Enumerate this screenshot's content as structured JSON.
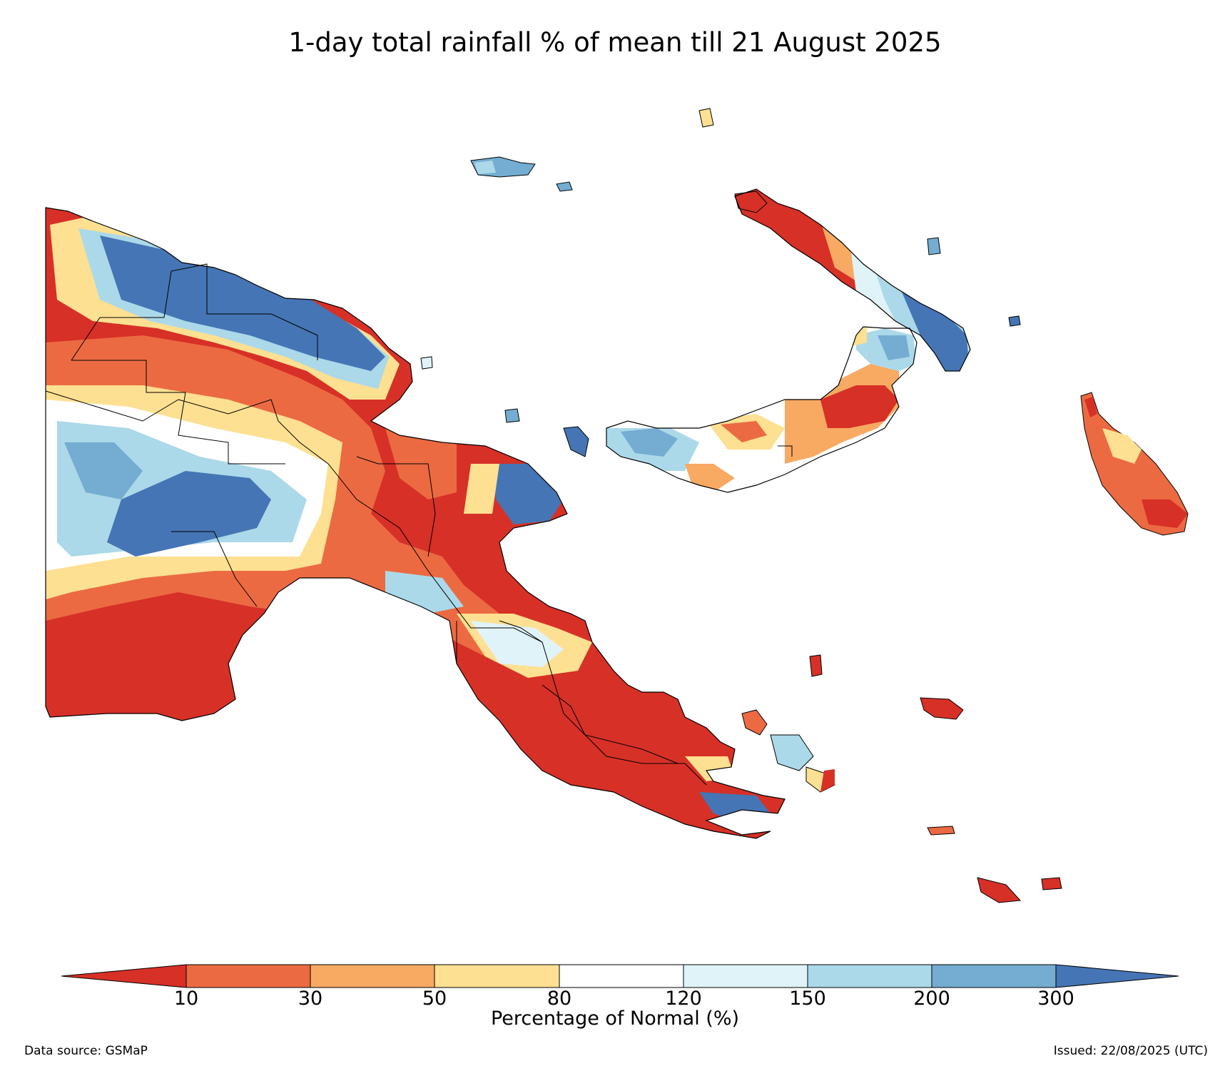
{
  "title": "1-day total rainfall % of mean till 21 August 2025",
  "colorbar": {
    "label": "Percentage of Normal (%)",
    "ticks": [
      "10",
      "30",
      "50",
      "80",
      "120",
      "150",
      "200",
      "300"
    ],
    "bins": [
      {
        "range": "<10",
        "color": "#d73027"
      },
      {
        "range": "10-30",
        "color": "#ec6a42"
      },
      {
        "range": "30-50",
        "color": "#f8a962"
      },
      {
        "range": "50-80",
        "color": "#fde091"
      },
      {
        "range": "80-120",
        "color": "#ffffff"
      },
      {
        "range": "120-150",
        "color": "#e0f3f8"
      },
      {
        "range": "150-200",
        "color": "#abd9e9"
      },
      {
        "range": "200-300",
        "color": "#74add1"
      },
      {
        "range": ">300",
        "color": "#4575b4"
      }
    ]
  },
  "footer": {
    "source": "Data source: GSMaP",
    "issued": "Issued: 22/08/2025 (UTC)"
  }
}
